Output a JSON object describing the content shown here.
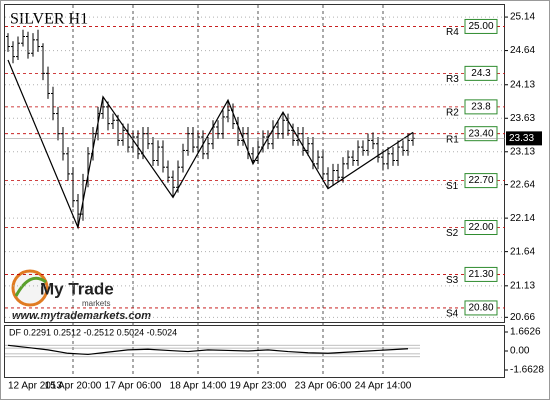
{
  "chart_data": [
    {
      "type": "ohlc",
      "title": "SILVER H1",
      "color": "#000000",
      "grid": true,
      "categories": [
        "12 Apr 2013",
        null,
        null,
        null,
        null,
        null,
        null,
        null,
        null,
        null,
        null,
        null,
        null,
        "15 Apr 20:00",
        null,
        null,
        null,
        null,
        null,
        null,
        null,
        null,
        null,
        null,
        null,
        "17 Apr 06:00",
        null,
        null,
        null,
        null,
        null,
        null,
        null,
        null,
        null,
        null,
        null,
        null,
        "18 Apr 14:00",
        null,
        null,
        null,
        null,
        null,
        null,
        null,
        null,
        null,
        null,
        null,
        "19 Apr 23:00",
        null,
        null,
        null,
        null,
        null,
        null,
        null,
        null,
        null,
        null,
        null,
        null,
        "23 Apr 06:00",
        null,
        null,
        null,
        null,
        null,
        null,
        null,
        null,
        null,
        null,
        null,
        "24 Apr 14:00",
        null,
        null,
        null,
        null,
        null,
        null
      ],
      "ohlc": [
        [
          24.85,
          24.9,
          24.62,
          24.7
        ],
        [
          24.7,
          24.78,
          24.45,
          24.55
        ],
        [
          24.55,
          24.85,
          24.5,
          24.75
        ],
        [
          24.75,
          24.95,
          24.7,
          24.85
        ],
        [
          24.85,
          24.92,
          24.52,
          24.6
        ],
        [
          24.6,
          24.9,
          24.55,
          24.8
        ],
        [
          24.8,
          24.95,
          24.62,
          24.7
        ],
        [
          24.7,
          24.75,
          24.2,
          24.3
        ],
        [
          24.3,
          24.4,
          23.92,
          24.0
        ],
        [
          24.0,
          24.1,
          23.6,
          23.7
        ],
        [
          23.7,
          23.8,
          23.3,
          23.4
        ],
        [
          23.4,
          23.5,
          23.0,
          23.1
        ],
        [
          23.1,
          23.2,
          22.7,
          22.8
        ],
        [
          22.8,
          22.9,
          22.3,
          22.4
        ],
        [
          22.4,
          22.5,
          22.0,
          22.2
        ],
        [
          22.2,
          22.8,
          22.1,
          22.7
        ],
        [
          22.7,
          23.2,
          22.6,
          23.1
        ],
        [
          23.1,
          23.5,
          23.0,
          23.4
        ],
        [
          23.4,
          23.8,
          23.3,
          23.7
        ],
        [
          23.7,
          23.95,
          23.62,
          23.8
        ],
        [
          23.8,
          23.88,
          23.45,
          23.55
        ],
        [
          23.55,
          23.7,
          23.47,
          23.6
        ],
        [
          23.6,
          23.68,
          23.22,
          23.3
        ],
        [
          23.3,
          23.55,
          23.22,
          23.45
        ],
        [
          23.45,
          23.55,
          23.12,
          23.2
        ],
        [
          23.2,
          23.45,
          23.12,
          23.35
        ],
        [
          23.35,
          23.45,
          23.02,
          23.1
        ],
        [
          23.1,
          23.5,
          23.02,
          23.4
        ],
        [
          23.4,
          23.5,
          23.17,
          23.25
        ],
        [
          23.25,
          23.35,
          22.92,
          23.0
        ],
        [
          23.0,
          23.3,
          22.92,
          23.2
        ],
        [
          23.2,
          23.3,
          22.82,
          22.9
        ],
        [
          22.9,
          23.0,
          22.67,
          22.75
        ],
        [
          22.75,
          22.85,
          22.45,
          22.6
        ],
        [
          22.6,
          23.0,
          22.52,
          22.9
        ],
        [
          22.9,
          23.25,
          22.82,
          23.15
        ],
        [
          23.15,
          23.5,
          23.07,
          23.4
        ],
        [
          23.4,
          23.5,
          23.12,
          23.2
        ],
        [
          23.2,
          23.45,
          23.12,
          23.35
        ],
        [
          23.35,
          23.45,
          23.02,
          23.1
        ],
        [
          23.1,
          23.35,
          23.02,
          23.25
        ],
        [
          23.25,
          23.6,
          23.17,
          23.5
        ],
        [
          23.5,
          23.6,
          23.32,
          23.4
        ],
        [
          23.4,
          23.75,
          23.32,
          23.65
        ],
        [
          23.65,
          23.9,
          23.57,
          23.75
        ],
        [
          23.75,
          23.85,
          23.47,
          23.55
        ],
        [
          23.55,
          23.65,
          23.22,
          23.3
        ],
        [
          23.3,
          23.5,
          23.22,
          23.4
        ],
        [
          23.4,
          23.5,
          23.02,
          23.1
        ],
        [
          23.1,
          23.2,
          22.95,
          23.0
        ],
        [
          23.0,
          23.3,
          22.95,
          23.2
        ],
        [
          23.2,
          23.45,
          23.12,
          23.35
        ],
        [
          23.35,
          23.45,
          23.17,
          23.25
        ],
        [
          23.25,
          23.6,
          23.17,
          23.5
        ],
        [
          23.5,
          23.6,
          23.32,
          23.4
        ],
        [
          23.4,
          23.72,
          23.32,
          23.6
        ],
        [
          23.6,
          23.7,
          23.37,
          23.45
        ],
        [
          23.45,
          23.55,
          23.22,
          23.3
        ],
        [
          23.3,
          23.5,
          23.22,
          23.4
        ],
        [
          23.4,
          23.5,
          23.07,
          23.15
        ],
        [
          23.15,
          23.35,
          23.07,
          23.25
        ],
        [
          23.25,
          23.35,
          22.87,
          22.95
        ],
        [
          22.95,
          23.15,
          22.87,
          23.05
        ],
        [
          23.05,
          23.15,
          22.72,
          22.8
        ],
        [
          22.8,
          22.9,
          22.58,
          22.7
        ],
        [
          22.7,
          22.95,
          22.62,
          22.85
        ],
        [
          22.85,
          22.95,
          22.67,
          22.75
        ],
        [
          22.75,
          23.05,
          22.67,
          22.95
        ],
        [
          22.95,
          23.15,
          22.87,
          23.05
        ],
        [
          23.05,
          23.15,
          22.92,
          23.0
        ],
        [
          23.0,
          23.3,
          22.92,
          23.2
        ],
        [
          23.2,
          23.3,
          23.07,
          23.15
        ],
        [
          23.15,
          23.4,
          23.07,
          23.3
        ],
        [
          23.3,
          23.42,
          23.17,
          23.25
        ],
        [
          23.25,
          23.35,
          22.97,
          23.05
        ],
        [
          23.05,
          23.15,
          22.85,
          22.95
        ],
        [
          22.95,
          23.2,
          22.87,
          23.1
        ],
        [
          23.1,
          23.2,
          22.92,
          23.0
        ],
        [
          23.0,
          23.3,
          22.92,
          23.2
        ],
        [
          23.2,
          23.3,
          23.07,
          23.15
        ],
        [
          23.15,
          23.4,
          23.07,
          23.3
        ],
        [
          23.3,
          23.42,
          23.22,
          23.33
        ]
      ],
      "zigzag": {
        "x": [
          0,
          14,
          19,
          33,
          44,
          49,
          55,
          64,
          81
        ],
        "values": [
          24.5,
          22.0,
          23.95,
          22.45,
          23.9,
          22.95,
          23.72,
          22.58,
          23.42
        ]
      },
      "levels": [
        {
          "name": "R4",
          "price": {
            "value": 25.0,
            "label": "25.00"
          }
        },
        {
          "name": "R3",
          "price": 24.3
        },
        {
          "name": "R2",
          "price": 23.8
        },
        {
          "name": "R1",
          "price": {
            "value": 23.4,
            "label": "23.40"
          }
        },
        {
          "name": "S1",
          "price": {
            "value": 22.7,
            "label": "22.70"
          }
        },
        {
          "name": "S2",
          "price": {
            "value": 22.0,
            "label": "22.00"
          }
        },
        {
          "name": "S3",
          "price": {
            "value": 21.3,
            "label": "21.30"
          }
        },
        {
          "name": "S4",
          "price": {
            "value": 20.8,
            "label": "20.80"
          }
        }
      ],
      "current": 23.33,
      "ylim": [
        20.62,
        25.32
      ],
      "yticks": [
        25.14,
        24.64,
        24.13,
        23.63,
        23.13,
        22.64,
        22.14,
        21.64,
        21.13,
        20.66
      ]
    },
    {
      "type": "line",
      "title": "DF 0.2291 0.2512 -0.2512 0.5024 -0.5024",
      "color": "#000000",
      "x": [
        0,
        4,
        8,
        12,
        16,
        20,
        24,
        28,
        32,
        36,
        40,
        44,
        48,
        52,
        56,
        60,
        64,
        68,
        72,
        76,
        80
      ],
      "values": [
        0.5,
        0.3,
        0.1,
        -0.2,
        -0.3,
        -0.1,
        0.1,
        0.15,
        0.05,
        -0.05,
        0.1,
        0.05,
        0.0,
        0.1,
        -0.05,
        -0.15,
        -0.2,
        -0.1,
        0.0,
        0.1,
        0.2
      ],
      "bands": [
        0.2512,
        -0.2512,
        0.5024,
        -0.5024
      ],
      "ylim": [
        -2.275,
        2.275
      ],
      "yticks": [
        1.6626,
        {
          "value": 0,
          "label": "0.00"
        },
        -1.6628
      ]
    }
  ],
  "logo": {
    "name": "My Trade",
    "tagline": "markets",
    "url": "www.mytrademarkets.com"
  }
}
